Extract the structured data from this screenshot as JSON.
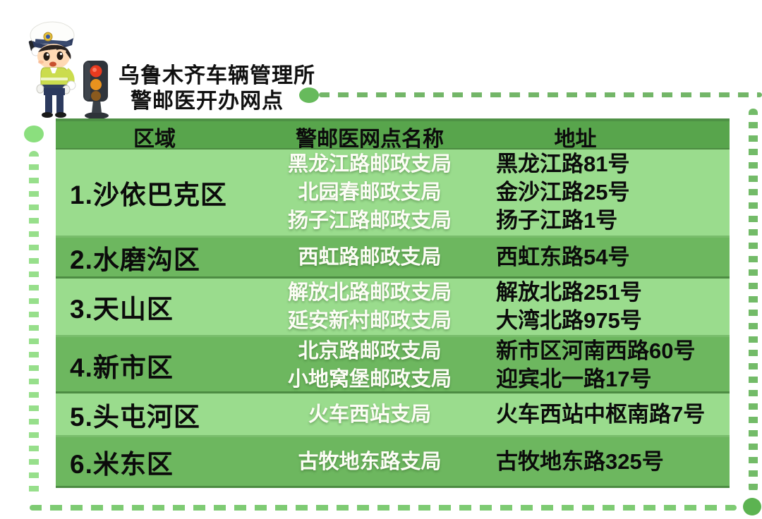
{
  "title": {
    "line1": "乌鲁木齐车辆管理所",
    "line2": "警邮医开办网点"
  },
  "mascot": {
    "description": "cartoon traffic police officer with traffic light",
    "traffic_light_lamps": [
      "red",
      "amber",
      "dim-amber"
    ]
  },
  "table": {
    "headers": [
      "区域",
      "警邮医网点名称",
      "地址"
    ],
    "rows": [
      {
        "region": "1.沙依巴克区",
        "outlets": [
          "黑龙江路邮政支局",
          "北园春邮政支局",
          "扬子江路邮政支局"
        ],
        "addresses": [
          "黑龙江路81号",
          "金沙江路25号",
          "扬子江路1号"
        ]
      },
      {
        "region": "2.水磨沟区",
        "outlets": [
          "西虹路邮政支局"
        ],
        "addresses": [
          "西虹东路54号"
        ]
      },
      {
        "region": "3.天山区",
        "outlets": [
          "解放北路邮政支局",
          "延安新村邮政支局"
        ],
        "addresses": [
          "解放北路251号",
          "大湾北路975号"
        ]
      },
      {
        "region": "4.新市区",
        "outlets": [
          "北京路邮政支局",
          "小地窝堡邮政支局"
        ],
        "addresses": [
          "新市区河南西路60号",
          "迎宾北一路17号"
        ]
      },
      {
        "region": "5.头屯河区",
        "outlets": [
          "火车西站支局"
        ],
        "addresses": [
          "火车西站中枢南路7号"
        ]
      },
      {
        "region": "6.米东区",
        "outlets": [
          "古牧地东路支局"
        ],
        "addresses": [
          "古牧地东路325号"
        ]
      }
    ]
  },
  "colors": {
    "header_green": "#58a54c",
    "row_light_green": "#9adc8d",
    "row_medium_green": "#6db75f",
    "separator_dark": "#4d8c43",
    "dash_light": "#97df8b",
    "dash_medium": "#73bb68",
    "outlet_text": "#fdfdf6",
    "main_text": "#0b0b0b"
  }
}
